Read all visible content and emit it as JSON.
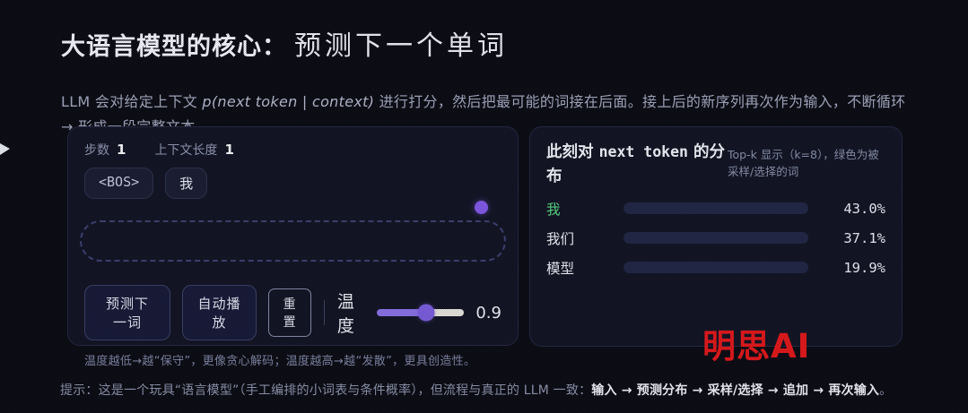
{
  "header": {
    "title_strong": "大语言模型的核心：",
    "title_serif": "预测下一个单词",
    "subtitle_part1": "LLM 会对给定上下文 ",
    "subtitle_math": "p(next token | context)",
    "subtitle_part2": " 进行打分，然后把最可能的词接在后面。接上后的新序列再次作为输入，不断循环 → 形成一段完整文本。"
  },
  "simulator": {
    "steps_label": "步数",
    "steps_value": "1",
    "context_label": "上下文长度",
    "context_value": "1",
    "tokens": [
      "<BOS>",
      "我"
    ],
    "buttons": {
      "predict": "预测下一词",
      "autoplay": "自动播放",
      "reset": "重置"
    },
    "temperature": {
      "label": "温度",
      "value": "0.9",
      "percent": 57
    },
    "hint": "温度越低→越“保守”，更像贪心解码；温度越高→越“发散”，更具创造性。"
  },
  "distribution": {
    "title_prefix": "此刻对 ",
    "title_mono": "next token",
    "title_suffix": " 的分布",
    "legend": "Top-k 显示（k=8），绿色为被采样/选择的词"
  },
  "chart_data": {
    "type": "bar",
    "title": "此刻对 next token 的分布",
    "note": "Top-k 显示（k=8），绿色为被采样/选择的词",
    "categories": [
      "我",
      "我们",
      "模型"
    ],
    "values": [
      43.0,
      37.1,
      19.9
    ],
    "value_labels": [
      "43.0%",
      "37.1%",
      "19.9%"
    ],
    "sampled_index": 0,
    "xlim": [
      0,
      100
    ],
    "legend_position": "top-right",
    "grid": false
  },
  "colors": {
    "accent_purple": "#8b72e8",
    "slider_rest": "#ece9df",
    "sampled_green": "#55dc81",
    "bar_green_from": "#1fa556",
    "bar_green_to": "#7bf59a",
    "bar_purple_from": "#7c5ce8",
    "bar_purple_to": "#5b9df0",
    "bar_track": "#1d2340",
    "watermark_red": "#e61414"
  },
  "watermark": {
    "text": "明思AI"
  },
  "footer": {
    "prefix": "提示：这是一个玩具“语言模型”（手工编排的小词表与条件概率），但流程与真正的 LLM 一致：",
    "flow": "输入 → 预测分布 → 采样/选择 → 追加 → 再次输入",
    "suffix": "。"
  }
}
